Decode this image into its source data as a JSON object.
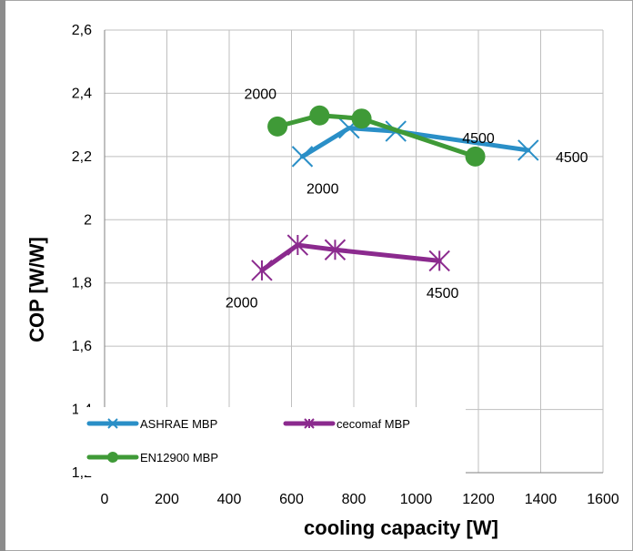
{
  "chart_data": {
    "type": "line",
    "title": "",
    "xlabel": "cooling capacity [W]",
    "ylabel": "COP [W/W]",
    "xlim": [
      0,
      1600
    ],
    "ylim": [
      1.2,
      2.6
    ],
    "x_ticks": [
      "0",
      "200",
      "400",
      "600",
      "800",
      "1000",
      "1200",
      "1400",
      "1600"
    ],
    "y_ticks": [
      "1,2",
      "1,4",
      "1,6",
      "1,8",
      "2",
      "2,2",
      "2,4",
      "2,6"
    ],
    "grid": true,
    "legend_position": "bottom-left",
    "series": [
      {
        "name": "ASHRAE MBP",
        "color": "#2a8fc7",
        "marker": "x",
        "x": [
          635,
          785,
          935,
          1360
        ],
        "y": [
          2.2,
          2.29,
          2.28,
          2.22
        ]
      },
      {
        "name": "cecomaf MBP",
        "color": "#8b2a8e",
        "marker": "star",
        "x": [
          505,
          620,
          740,
          1075
        ],
        "y": [
          1.84,
          1.92,
          1.905,
          1.87
        ]
      },
      {
        "name": "EN12900 MBP",
        "color": "#3f9a37",
        "marker": "circle",
        "x": [
          555,
          690,
          825,
          1190
        ],
        "y": [
          2.295,
          2.33,
          2.32,
          2.2
        ]
      }
    ],
    "annotations": [
      {
        "text": "2000",
        "x": 500,
        "y": 2.4
      },
      {
        "text": "4500",
        "x": 1200,
        "y": 2.26
      },
      {
        "text": "4500",
        "x": 1500,
        "y": 2.2
      },
      {
        "text": "2000",
        "x": 700,
        "y": 2.1
      },
      {
        "text": "2000",
        "x": 440,
        "y": 1.74
      },
      {
        "text": "4500",
        "x": 1085,
        "y": 1.77
      }
    ]
  }
}
